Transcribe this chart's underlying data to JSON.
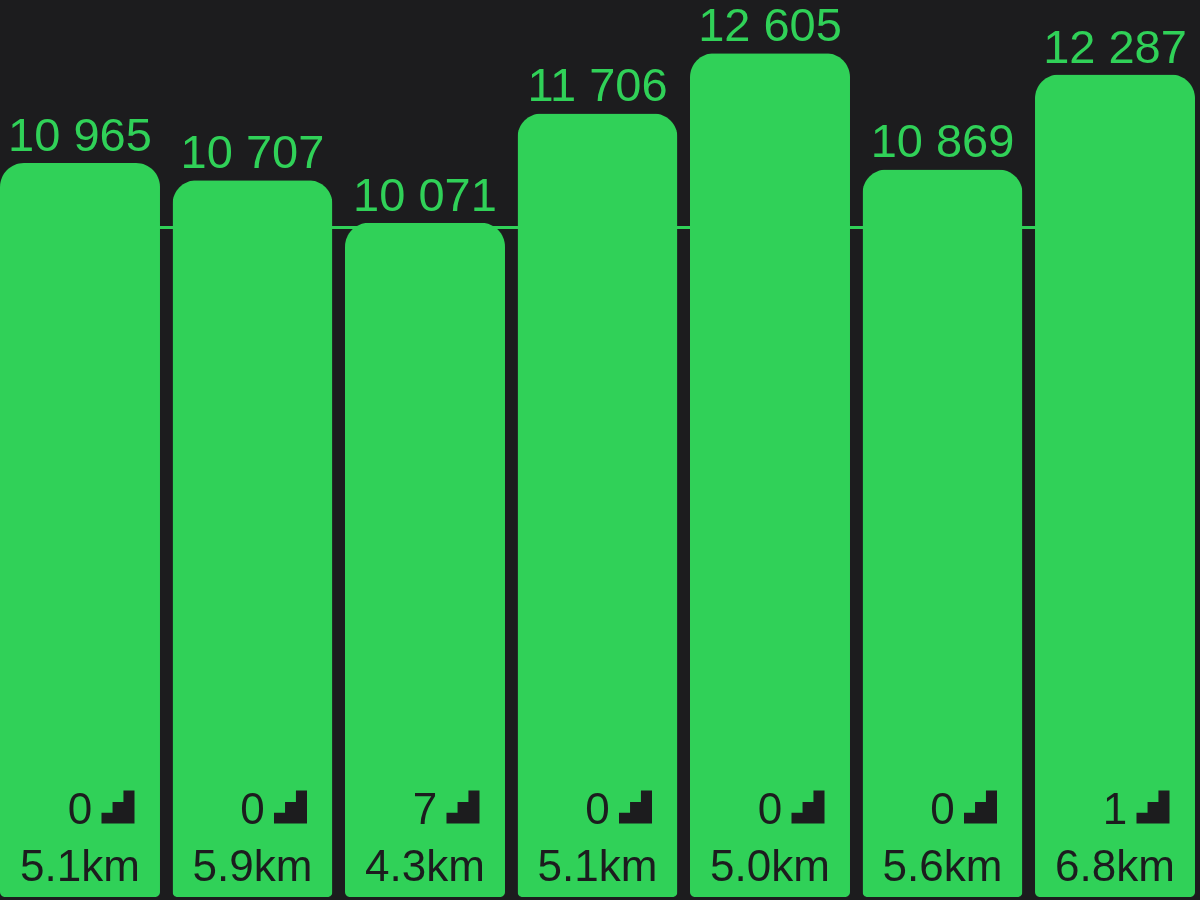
{
  "chart_data": {
    "type": "bar",
    "categories": [
      "0\n5.1km",
      "0\n5.9km",
      "7\n4.3km",
      "0\n5.1km",
      "0\n5.0km",
      "0\n5.6km",
      "1\n6.8km"
    ],
    "values": [
      10965,
      10707,
      10071,
      11706,
      12605,
      10869,
      12287
    ],
    "value_labels": [
      "10 965",
      "10 707",
      "10 071",
      "11 706",
      "12 605",
      "10 869",
      "12 287"
    ],
    "color": "#30d158",
    "ylim": [
      0,
      13400
    ],
    "ref_lines": [
      {
        "axis": "y",
        "value": 10000,
        "color": "#30d158"
      }
    ],
    "tick_labels": "x"
  }
}
